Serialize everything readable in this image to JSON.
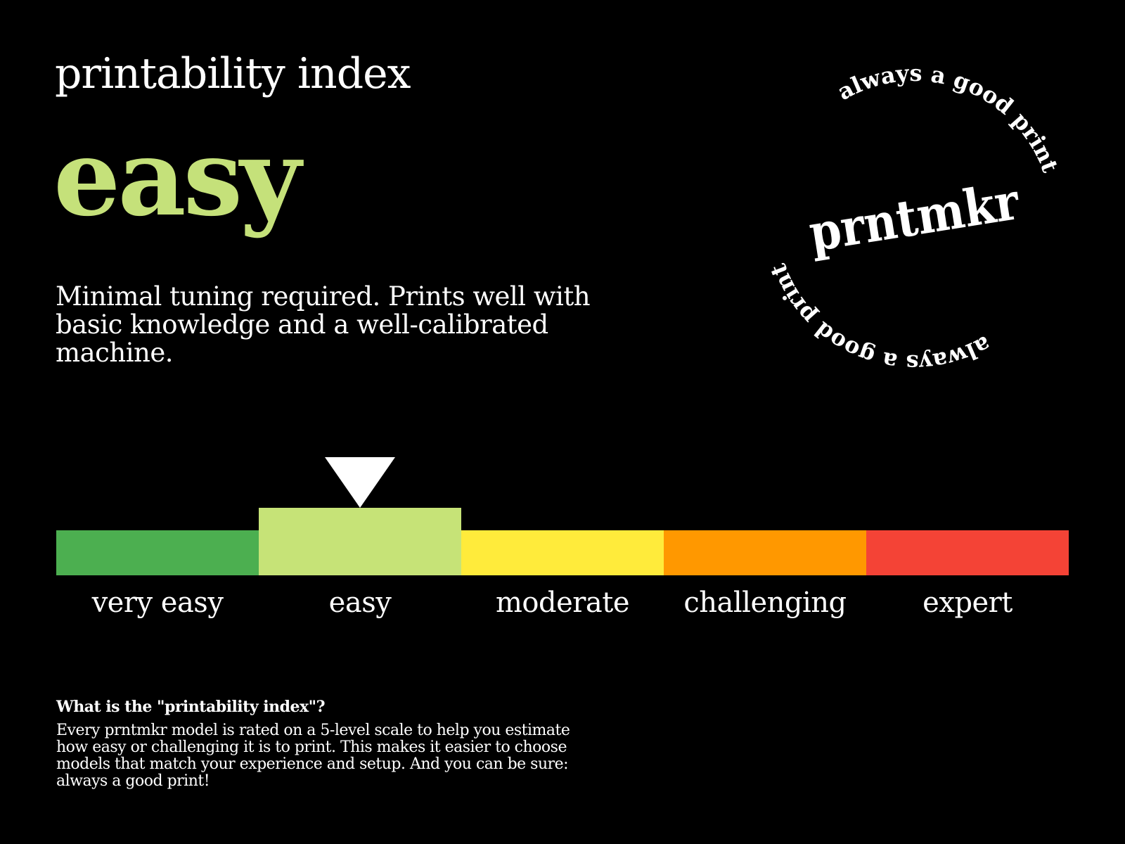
{
  "header": {
    "title": "printability index"
  },
  "rating": {
    "level": "easy",
    "level_color": "#c5e17a",
    "selected_index": 1,
    "description": "Minimal tuning required. Prints well with basic knowledge and a well-calibrated machine."
  },
  "scale": {
    "levels": [
      {
        "label": "very easy",
        "color": "#4caf50"
      },
      {
        "label": "easy",
        "color": "#c6e377"
      },
      {
        "label": "moderate",
        "color": "#ffeb3b"
      },
      {
        "label": "challenging",
        "color": "#ff9800"
      },
      {
        "label": "expert",
        "color": "#f44336"
      }
    ],
    "marker_icon": "triangle-down-icon"
  },
  "logo": {
    "brand": "prntmkr",
    "ring_text": "always a good print"
  },
  "faq": {
    "question": "What is the \"printability index\"?",
    "answer": "Every prntmkr model is rated on a 5-level scale to help you estimate how easy or challenging it is to print. This makes it easier to choose models that match your experience and setup. And you can be sure: always a good print!"
  }
}
